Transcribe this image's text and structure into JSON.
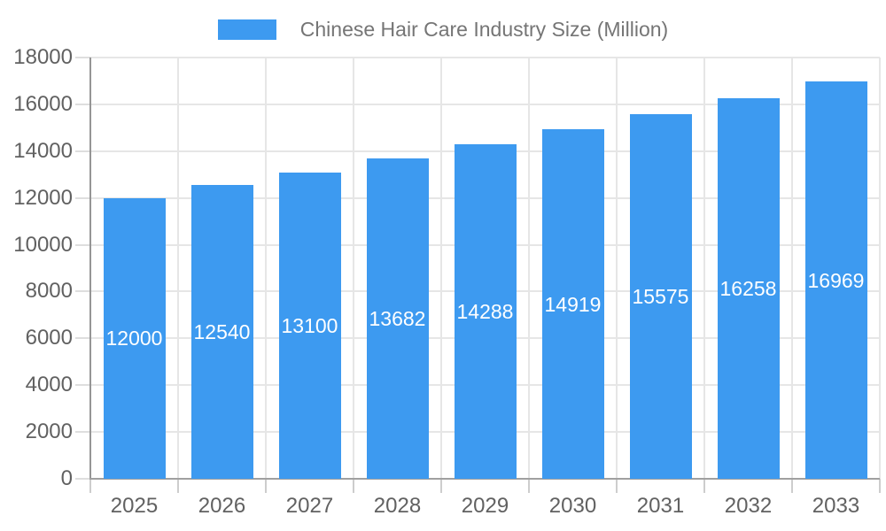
{
  "legend": {
    "label": "Chinese Hair Care Industry Size (Million)",
    "swatch_color": "#3d9af0"
  },
  "chart_data": {
    "type": "bar",
    "title": "Chinese Hair Care Industry Size (Million)",
    "categories": [
      "2025",
      "2026",
      "2027",
      "2028",
      "2029",
      "2030",
      "2031",
      "2032",
      "2033"
    ],
    "series": [
      {
        "name": "Chinese Hair Care Industry Size (Million)",
        "color": "#3d9af0",
        "values": [
          12000,
          12540,
          13100,
          13682,
          14288,
          14919,
          15575,
          16258,
          16969
        ]
      }
    ],
    "value_labels_shown": true,
    "value_label_position": "inside-center",
    "xlabel": "",
    "ylabel": "",
    "ylim": [
      0,
      18000
    ],
    "ytick_interval": 2000,
    "ytick_labels": [
      "0",
      "2000",
      "4000",
      "6000",
      "8000",
      "10000",
      "12000",
      "14000",
      "16000",
      "18000"
    ],
    "grid": "horizontal-and-vertical-boundaries",
    "legend_position": "top-center"
  },
  "style": {
    "background_color": "#ffffff",
    "bar_color": "#3d9af0",
    "gridline_color": "#e6e6e6",
    "y_axis_line_color": "#959595",
    "x_axis_line_color": "#a0a0a0",
    "axis_label_color": "#616161",
    "legend_text_color": "#757575",
    "bar_value_label_color": "#ffffff"
  }
}
